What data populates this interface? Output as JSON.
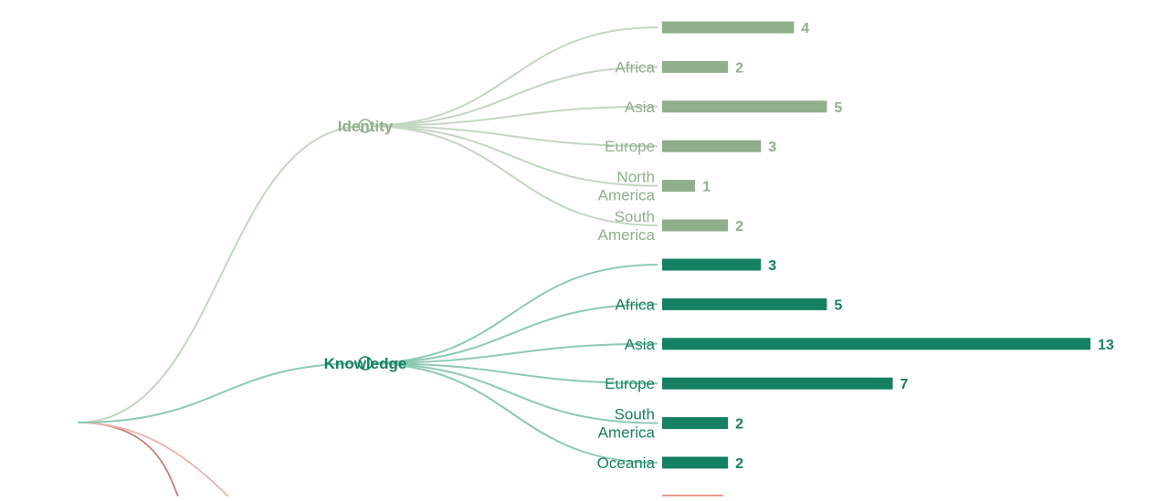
{
  "colors": {
    "identity_bar": "#8faf8b",
    "identity_link": "#c3d6c1",
    "identity_text": "#8faf8b",
    "knowledge_bar": "#168063",
    "knowledge_link": "#8dc9b3",
    "knowledge_text": "#168063",
    "third_link_a": "#c97d72",
    "third_link_b": "#f0b0a8",
    "third_bar": "#ef9a8e"
  },
  "chart_data": {
    "type": "tree-bar",
    "value_scale_max": 13,
    "groups": [
      {
        "name": "Identity",
        "theme": "identity",
        "children": [
          {
            "label": "",
            "value": 4
          },
          {
            "label": "Africa",
            "value": 2
          },
          {
            "label": "Asia",
            "value": 5
          },
          {
            "label": "Europe",
            "value": 3
          },
          {
            "label": "North\nAmerica",
            "value": 1
          },
          {
            "label": "South\nAmerica",
            "value": 2
          }
        ]
      },
      {
        "name": "Knowledge",
        "theme": "knowledge",
        "children": [
          {
            "label": "",
            "value": 3
          },
          {
            "label": "Africa",
            "value": 5
          },
          {
            "label": "Asia",
            "value": 13
          },
          {
            "label": "Europe",
            "value": 7
          },
          {
            "label": "South\nAmerica",
            "value": 2
          },
          {
            "label": "Oceania",
            "value": 2
          }
        ]
      }
    ]
  }
}
